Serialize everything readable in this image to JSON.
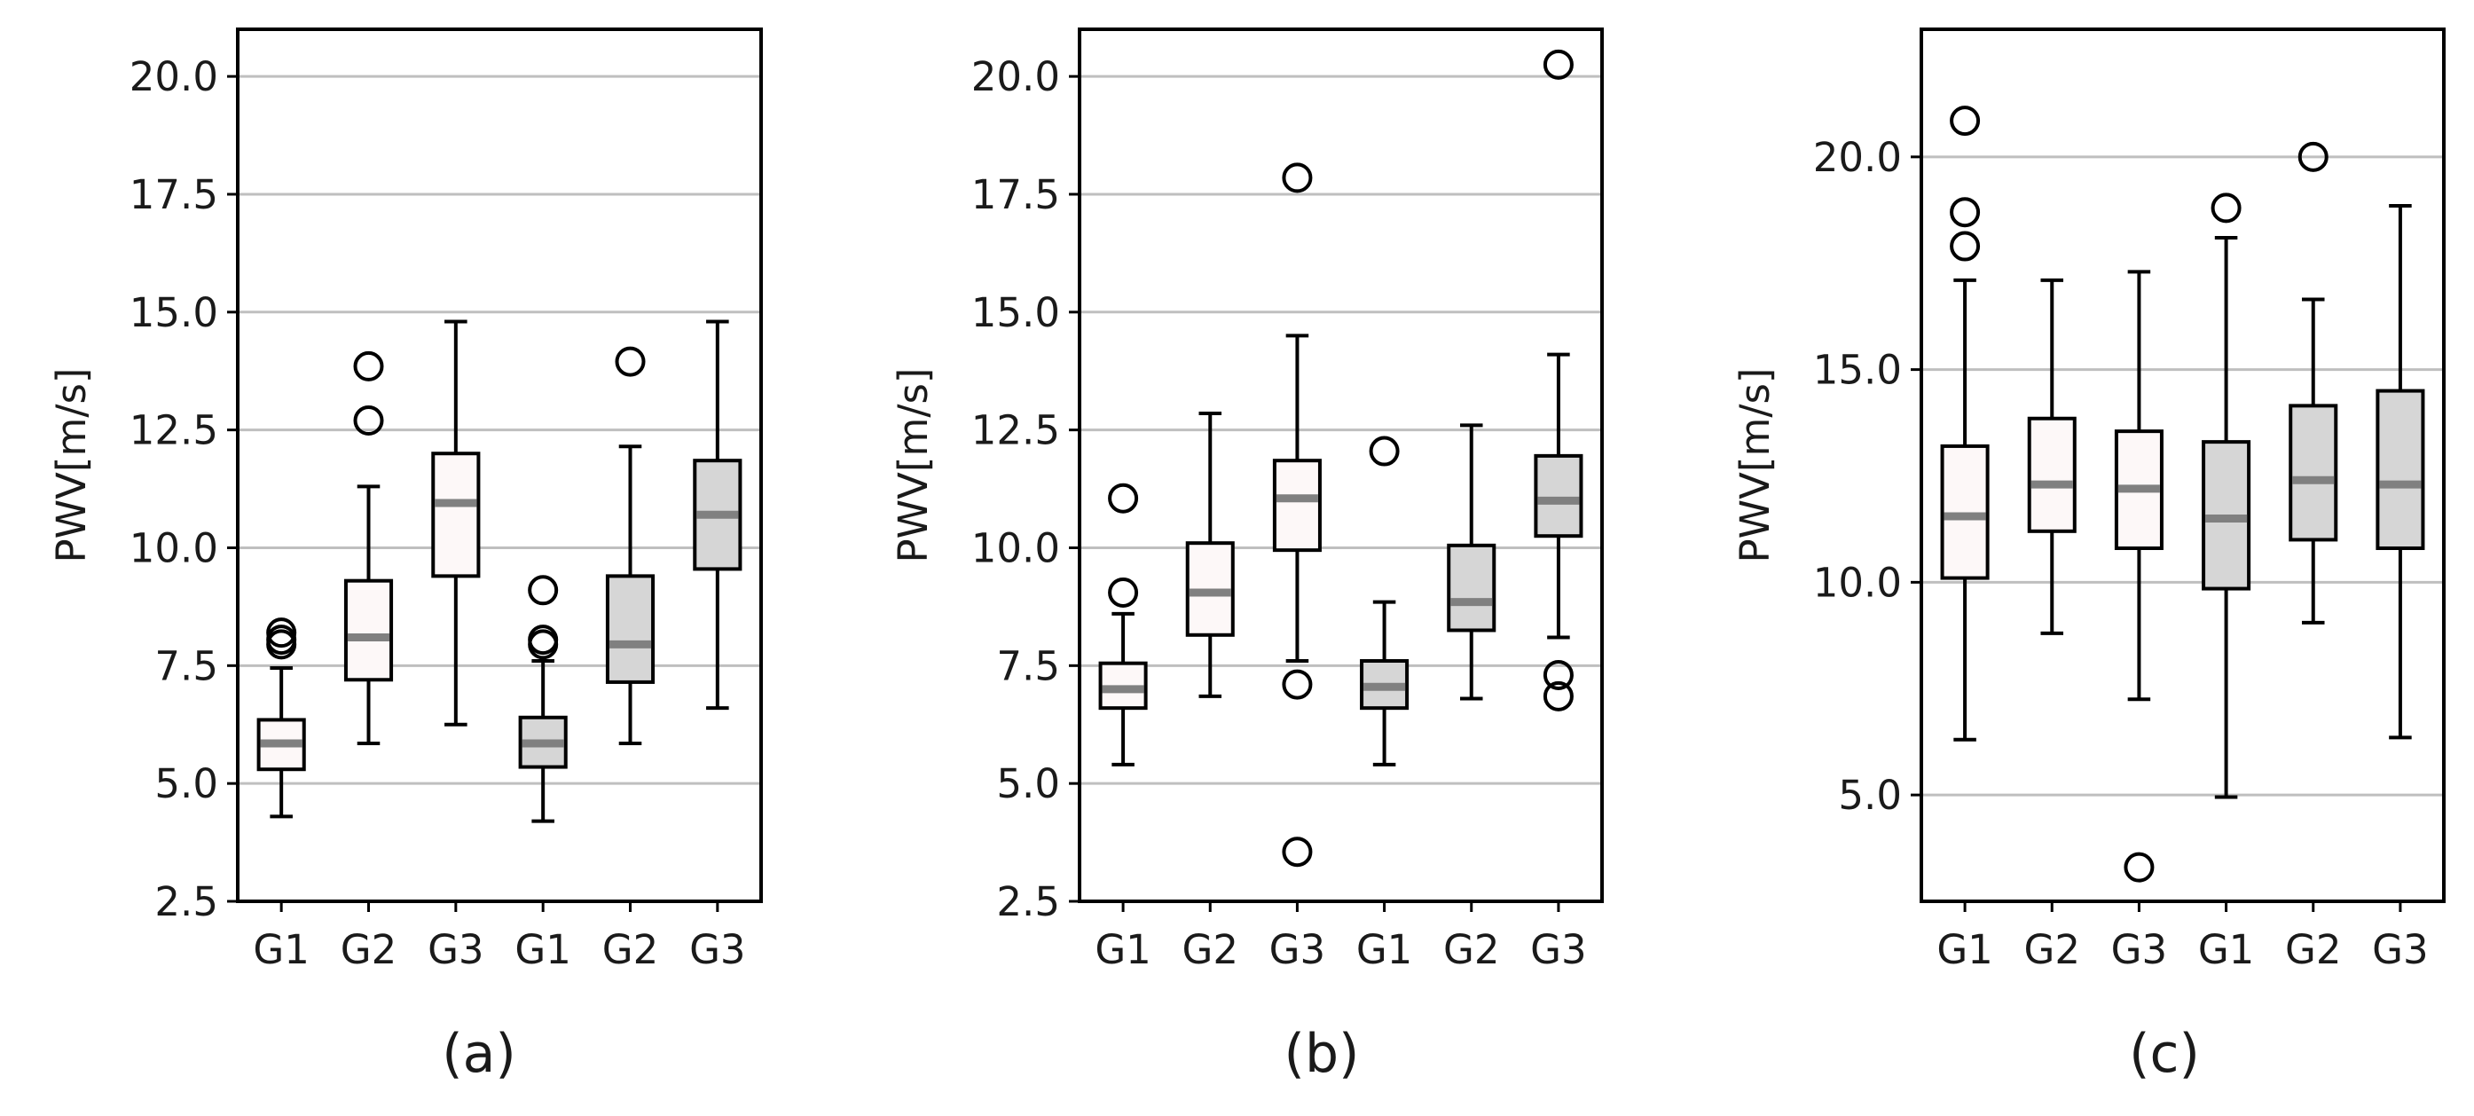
{
  "figure": {
    "panel_captions": [
      "(a)",
      "(b)",
      "(c)"
    ]
  },
  "colors": {
    "box_fill_light": "#fdf8f8",
    "box_fill_dark": "#d6d6d6",
    "median": "#808080",
    "grid": "#bfbfbf",
    "ink": "#000000"
  },
  "chart_data": [
    {
      "type": "box",
      "panel": "(a)",
      "title": "",
      "xlabel": "",
      "ylabel": "PWV[m/s]",
      "ylim": [
        2.5,
        21.0
      ],
      "yticks": [
        2.5,
        5.0,
        7.5,
        10.0,
        12.5,
        15.0,
        17.5,
        20.0
      ],
      "ytick_labels": [
        "2.5",
        "5.0",
        "7.5",
        "10.0",
        "12.5",
        "15.0",
        "17.5",
        "20.0"
      ],
      "grid": "horizontal",
      "categories": [
        "G1",
        "G2",
        "G3",
        "G1",
        "G2",
        "G3"
      ],
      "boxes": [
        {
          "label": "G1",
          "shade": "light",
          "whisker_low": 4.3,
          "q1": 5.3,
          "median": 5.85,
          "q3": 6.35,
          "whisker_high": 7.45,
          "outliers": [
            7.95,
            8.05,
            8.2
          ]
        },
        {
          "label": "G2",
          "shade": "light",
          "whisker_low": 5.85,
          "q1": 7.2,
          "median": 8.1,
          "q3": 9.3,
          "whisker_high": 11.3,
          "outliers": [
            12.7,
            13.85
          ]
        },
        {
          "label": "G3",
          "shade": "light",
          "whisker_low": 6.25,
          "q1": 9.4,
          "median": 10.95,
          "q3": 12.0,
          "whisker_high": 14.8,
          "outliers": []
        },
        {
          "label": "G1",
          "shade": "dark",
          "whisker_low": 4.2,
          "q1": 5.35,
          "median": 5.85,
          "q3": 6.4,
          "whisker_high": 7.6,
          "outliers": [
            7.95,
            8.05,
            9.1
          ]
        },
        {
          "label": "G2",
          "shade": "dark",
          "whisker_low": 5.85,
          "q1": 7.15,
          "median": 7.95,
          "q3": 9.4,
          "whisker_high": 12.15,
          "outliers": [
            13.95
          ]
        },
        {
          "label": "G3",
          "shade": "dark",
          "whisker_low": 6.6,
          "q1": 9.55,
          "median": 10.7,
          "q3": 11.85,
          "whisker_high": 14.8,
          "outliers": []
        }
      ]
    },
    {
      "type": "box",
      "panel": "(b)",
      "title": "",
      "xlabel": "",
      "ylabel": "PWV[m/s]",
      "ylim": [
        2.5,
        21.0
      ],
      "yticks": [
        2.5,
        5.0,
        7.5,
        10.0,
        12.5,
        15.0,
        17.5,
        20.0
      ],
      "ytick_labels": [
        "2.5",
        "5.0",
        "7.5",
        "10.0",
        "12.5",
        "15.0",
        "17.5",
        "20.0"
      ],
      "grid": "horizontal",
      "categories": [
        "G1",
        "G2",
        "G3",
        "G1",
        "G2",
        "G3"
      ],
      "boxes": [
        {
          "label": "G1",
          "shade": "light",
          "whisker_low": 5.4,
          "q1": 6.6,
          "median": 7.0,
          "q3": 7.55,
          "whisker_high": 8.6,
          "outliers": [
            9.05,
            11.05
          ]
        },
        {
          "label": "G2",
          "shade": "light",
          "whisker_low": 6.85,
          "q1": 8.15,
          "median": 9.05,
          "q3": 10.1,
          "whisker_high": 12.85,
          "outliers": []
        },
        {
          "label": "G3",
          "shade": "light",
          "whisker_low": 7.6,
          "q1": 9.95,
          "median": 11.05,
          "q3": 11.85,
          "whisker_high": 14.5,
          "outliers": [
            3.55,
            7.1,
            17.85
          ]
        },
        {
          "label": "G1",
          "shade": "dark",
          "whisker_low": 5.4,
          "q1": 6.6,
          "median": 7.05,
          "q3": 7.6,
          "whisker_high": 8.85,
          "outliers": [
            12.05
          ]
        },
        {
          "label": "G2",
          "shade": "dark",
          "whisker_low": 6.8,
          "q1": 8.25,
          "median": 8.85,
          "q3": 10.05,
          "whisker_high": 12.6,
          "outliers": []
        },
        {
          "label": "G3",
          "shade": "dark",
          "whisker_low": 8.1,
          "q1": 10.25,
          "median": 11.0,
          "q3": 11.95,
          "whisker_high": 14.1,
          "outliers": [
            6.85,
            7.3,
            20.25
          ]
        }
      ]
    },
    {
      "type": "box",
      "panel": "(c)",
      "title": "",
      "xlabel": "",
      "ylabel": "PWV[m/s]",
      "ylim": [
        2.5,
        23.0
      ],
      "yticks": [
        5.0,
        10.0,
        15.0,
        20.0
      ],
      "ytick_labels": [
        "5.0",
        "10.0",
        "15.0",
        "20.0"
      ],
      "grid": "horizontal",
      "categories": [
        "G1",
        "G2",
        "G3",
        "G1",
        "G2",
        "G3"
      ],
      "boxes": [
        {
          "label": "G1",
          "shade": "light",
          "whisker_low": 6.3,
          "q1": 10.1,
          "median": 11.55,
          "q3": 13.2,
          "whisker_high": 17.1,
          "outliers": [
            17.9,
            18.7,
            20.85
          ]
        },
        {
          "label": "G2",
          "shade": "light",
          "whisker_low": 8.8,
          "q1": 11.2,
          "median": 12.3,
          "q3": 13.85,
          "whisker_high": 17.1,
          "outliers": []
        },
        {
          "label": "G3",
          "shade": "light",
          "whisker_low": 7.25,
          "q1": 10.8,
          "median": 12.2,
          "q3": 13.55,
          "whisker_high": 17.3,
          "outliers": [
            3.3
          ]
        },
        {
          "label": "G1",
          "shade": "dark",
          "whisker_low": 4.95,
          "q1": 9.85,
          "median": 11.5,
          "q3": 13.3,
          "whisker_high": 18.1,
          "outliers": [
            18.8
          ]
        },
        {
          "label": "G2",
          "shade": "dark",
          "whisker_low": 9.05,
          "q1": 11.0,
          "median": 12.4,
          "q3": 14.15,
          "whisker_high": 16.65,
          "outliers": [
            20.0
          ]
        },
        {
          "label": "G3",
          "shade": "dark",
          "whisker_low": 6.35,
          "q1": 10.8,
          "median": 12.3,
          "q3": 14.5,
          "whisker_high": 18.85,
          "outliers": []
        }
      ]
    }
  ]
}
